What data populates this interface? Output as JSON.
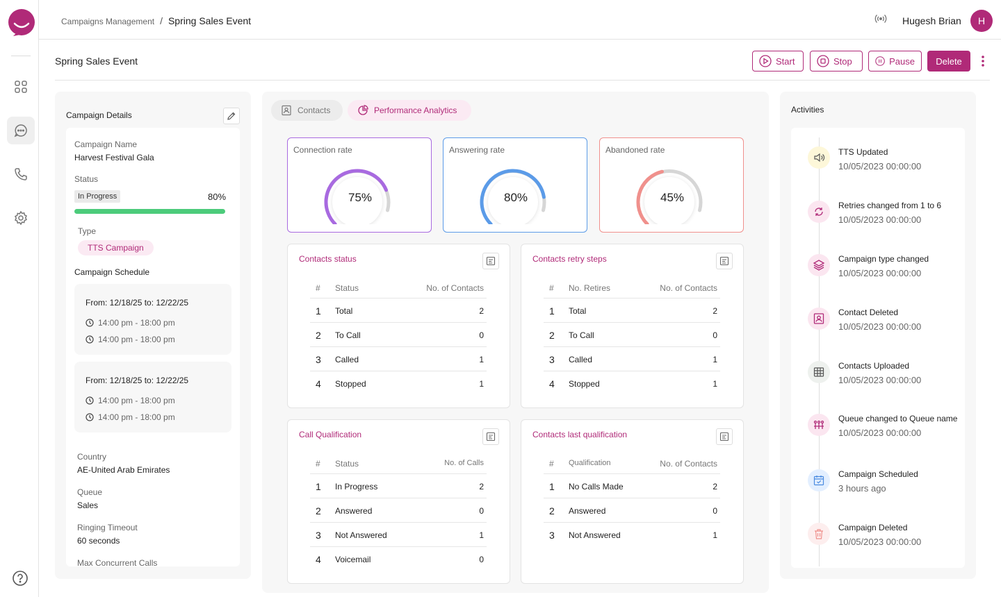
{
  "breadcrumb": {
    "parent": "Campaigns Management",
    "separator": "/",
    "current": "Spring Sales Event"
  },
  "user": {
    "name": "Hugesh Brian",
    "initial": "H"
  },
  "page": {
    "title": "Spring Sales Event"
  },
  "actions": {
    "start": "Start",
    "stop": "Stop",
    "pause": "Pause",
    "delete": "Delete"
  },
  "colors": {
    "brand": "#b02a78",
    "connection": "#a86ae0",
    "answering": "#5b9be8",
    "abandoned": "#f0908c",
    "progress": "#4ccb7b"
  },
  "campaign_details": {
    "title": "Campaign Details",
    "name_label": "Campaign Name",
    "name": "Harvest Festival Gala",
    "status_label": "Status",
    "status": "In Progress",
    "progress_text": "80%",
    "progress": 0.8,
    "type_label": "Type",
    "type": "TTS Campaign",
    "schedule_label": "Campaign Schedule",
    "schedules": [
      {
        "from": "From:  12/18/25  to: 12/22/25",
        "times": [
          "14:00 pm - 18:00 pm",
          "14:00 pm - 18:00 pm"
        ]
      },
      {
        "from": "From:  12/18/25  to: 12/22/25",
        "times": [
          "14:00 pm - 18:00 pm",
          "14:00 pm - 18:00 pm"
        ]
      }
    ],
    "country_label": "Country",
    "country": "AE-United Arab Emirates",
    "queue_label": "Queue",
    "queue": "Sales",
    "ringing_label": "Ringing Timeout",
    "ringing": "60 seconds",
    "max_label": "Max Concurrent Calls"
  },
  "tabs": {
    "contacts": "Contacts",
    "performance": "Performance Analytics"
  },
  "rates": [
    {
      "label": "Connection rate",
      "value_text": "75%",
      "value": 0.75
    },
    {
      "label": "Answering rate",
      "value_text": "80%",
      "value": 0.8
    },
    {
      "label": "Abandoned rate",
      "value_text": "45%",
      "value": 0.45
    }
  ],
  "tables": {
    "contacts_status": {
      "title": "Contacts status",
      "headers": [
        "#",
        "Status",
        "No. of Contacts"
      ],
      "rows": [
        [
          "1",
          "Total",
          "2"
        ],
        [
          "2",
          "To Call",
          "0"
        ],
        [
          "3",
          "Called",
          "1"
        ],
        [
          "4",
          "Stopped",
          "1"
        ]
      ]
    },
    "retry_steps": {
      "title": "Contacts retry steps",
      "headers": [
        "#",
        "No. Retires",
        "No. of Contacts"
      ],
      "rows": [
        [
          "1",
          "Total",
          "2"
        ],
        [
          "2",
          "To Call",
          "0"
        ],
        [
          "3",
          "Called",
          "1"
        ],
        [
          "4",
          "Stopped",
          "1"
        ]
      ]
    },
    "call_qualification": {
      "title": "Call Qualification",
      "headers": [
        "#",
        "Status",
        "No. of Calls"
      ],
      "rows": [
        [
          "1",
          "In Progress",
          "2"
        ],
        [
          "2",
          "Answered",
          "0"
        ],
        [
          "3",
          "Not Answered",
          "1"
        ],
        [
          "4",
          "Voicemail",
          "0"
        ]
      ]
    },
    "last_qualification": {
      "title": "Contacts last qualification",
      "headers": [
        "#",
        "Qualification",
        "No. of Contacts"
      ],
      "rows": [
        [
          "1",
          "No Calls Made",
          "2"
        ],
        [
          "2",
          "Answered",
          "0"
        ],
        [
          "3",
          "Not Answered",
          "1"
        ]
      ]
    }
  },
  "activities": {
    "title": "Activities",
    "items": [
      {
        "title": "TTS Updated",
        "date": "10/05/2023  00:00:00",
        "icon": "speaker-icon"
      },
      {
        "title": "Retries changed from 1 to 6",
        "date": "10/05/2023  00:00:00",
        "icon": "refresh-icon"
      },
      {
        "title": "Campaign type changed",
        "date": "10/05/2023  00:00:00",
        "icon": "layers-icon"
      },
      {
        "title": "Contact Deleted",
        "date": "10/05/2023  00:00:00",
        "icon": "contact-card-icon"
      },
      {
        "title": "Contacts Uploaded",
        "date": "10/05/2023  00:00:00",
        "icon": "table-icon"
      },
      {
        "title": "Queue changed to Queue name",
        "date": "10/05/2023  00:00:00",
        "icon": "queue-icon"
      },
      {
        "title": "Campaign Scheduled",
        "date": "3 hours ago",
        "icon": "calendar-icon"
      },
      {
        "title": "Campaign Deleted",
        "date": "10/05/2023  00:00:00",
        "icon": "trash-icon"
      }
    ]
  }
}
